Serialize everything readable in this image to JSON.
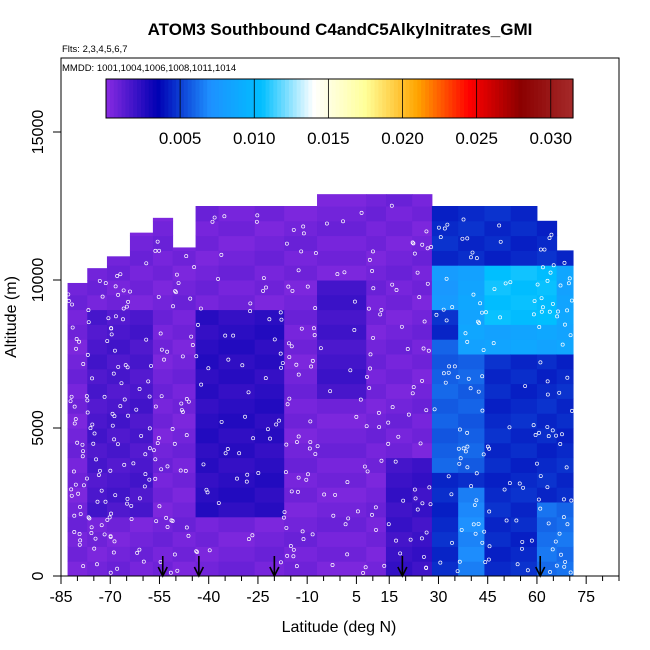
{
  "chart_data": {
    "type": "heatmap",
    "title": "ATOM3 Southbound C4andC5Alkylnitrates_GMI",
    "flights_label": "Flts: 2,3,4,5,6,7",
    "dates_label": "MMDD: 1001,1004,1006,1008,1011,1014",
    "xlabel": "Latitude (deg N)",
    "ylabel": "Altitude (m)",
    "xlim": [
      -85,
      85
    ],
    "ylim": [
      0,
      17500
    ],
    "x_ticks": [
      -85,
      -70,
      -55,
      -40,
      -25,
      -10,
      5,
      15,
      30,
      45,
      60,
      75
    ],
    "y_ticks": [
      0,
      5000,
      10000,
      15000
    ],
    "colorbar": {
      "range": [
        0,
        0.0315
      ],
      "ticks": [
        0.005,
        0.01,
        0.015,
        0.02,
        0.025,
        0.03
      ],
      "tick_labels": [
        "0.005",
        "0.010",
        "0.015",
        "0.020",
        "0.025",
        "0.030"
      ],
      "colors": [
        "#8a2be2",
        "#0000b3",
        "#1e90ff",
        "#00bfff",
        "#ffffff",
        "#ffff99",
        "#ffa500",
        "#ff0000",
        "#8b0000",
        "#a52a2a"
      ]
    },
    "columns": [
      {
        "lat": [
          -83,
          -77
        ],
        "top": 9900
      },
      {
        "lat": [
          -77,
          -71
        ],
        "top": 10400
      },
      {
        "lat": [
          -71,
          -64
        ],
        "top": 10800
      },
      {
        "lat": [
          -64,
          -57
        ],
        "top": 11600
      },
      {
        "lat": [
          -57,
          -51
        ],
        "top": 12100
      },
      {
        "lat": [
          -51,
          -44
        ],
        "top": 11100
      },
      {
        "lat": [
          -44,
          -37
        ],
        "top": 12500
      },
      {
        "lat": [
          -37,
          -26
        ],
        "top": 12500
      },
      {
        "lat": [
          -26,
          -17
        ],
        "top": 12500
      },
      {
        "lat": [
          -17,
          -7
        ],
        "top": 12500
      },
      {
        "lat": [
          -7,
          8
        ],
        "top": 12900
      },
      {
        "lat": [
          8,
          14
        ],
        "top": 12900
      },
      {
        "lat": [
          14,
          22
        ],
        "top": 12900
      },
      {
        "lat": [
          22,
          28
        ],
        "top": 12900
      },
      {
        "lat": [
          28,
          36
        ],
        "top": 12500
      },
      {
        "lat": [
          36,
          44
        ],
        "top": 12500
      },
      {
        "lat": [
          44,
          52
        ],
        "top": 12500
      },
      {
        "lat": [
          52,
          60
        ],
        "top": 12500
      },
      {
        "lat": [
          60,
          66
        ],
        "top": 12000
      },
      {
        "lat": [
          66,
          71
        ],
        "top": 11000
      }
    ],
    "regions": [
      {
        "lat": [
          -83,
          71
        ],
        "alt": [
          0,
          13000
        ],
        "value": 0.0006
      },
      {
        "lat": [
          -75,
          -58
        ],
        "alt": [
          2000,
          9000
        ],
        "value": 0.0016
      },
      {
        "lat": [
          -42,
          -20
        ],
        "alt": [
          2000,
          9200
        ],
        "value": 0.0024
      },
      {
        "lat": [
          -3,
          8
        ],
        "alt": [
          6000,
          10000
        ],
        "value": 0.0018
      },
      {
        "lat": [
          15,
          25
        ],
        "alt": [
          0,
          4000
        ],
        "value": 0.002
      },
      {
        "lat": [
          27,
          71
        ],
        "alt": [
          0,
          12800
        ],
        "value": 0.0045
      },
      {
        "lat": [
          28,
          45
        ],
        "alt": [
          3500,
          8000
        ],
        "value": 0.0058
      },
      {
        "lat": [
          40,
          70
        ],
        "alt": [
          7500,
          10600
        ],
        "value": 0.0085
      },
      {
        "lat": [
          48,
          65
        ],
        "alt": [
          8500,
          10400
        ],
        "value": 0.0105
      },
      {
        "lat": [
          30,
          40
        ],
        "alt": [
          8800,
          10300
        ],
        "value": 0.0078
      },
      {
        "lat": [
          35,
          42
        ],
        "alt": [
          0,
          3000
        ],
        "value": 0.0068
      },
      {
        "lat": [
          58,
          70
        ],
        "alt": [
          0,
          2500
        ],
        "value": 0.0062
      }
    ],
    "arrow_lats": [
      -54,
      -43,
      -20,
      19,
      61
    ]
  }
}
